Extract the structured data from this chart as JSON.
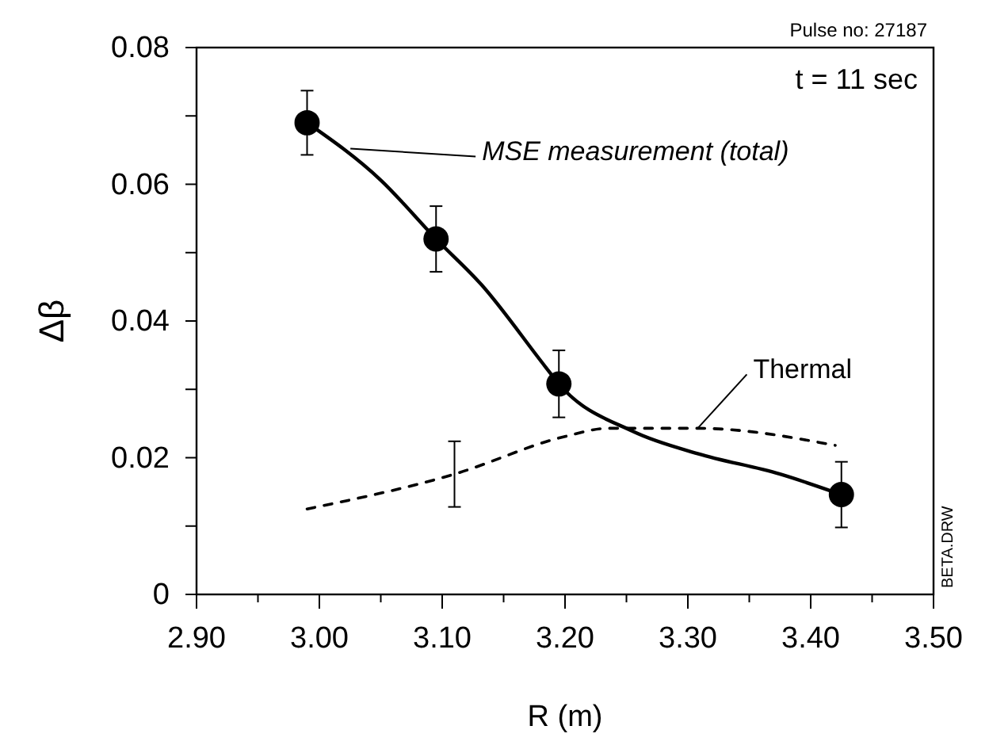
{
  "chart_data": {
    "type": "line",
    "xlabel": "R (m)",
    "ylabel": "Δβ",
    "xlim": [
      2.9,
      3.5
    ],
    "xticks": [
      {
        "value": 2.9,
        "label": "2.90"
      },
      {
        "value": 2.95,
        "label": null
      },
      {
        "value": 3.0,
        "label": "3.00"
      },
      {
        "value": 3.05,
        "label": null
      },
      {
        "value": 3.1,
        "label": "3.10"
      },
      {
        "value": 3.15,
        "label": null
      },
      {
        "value": 3.2,
        "label": "3.20"
      },
      {
        "value": 3.25,
        "label": null
      },
      {
        "value": 3.3,
        "label": "3.30"
      },
      {
        "value": 3.35,
        "label": null
      },
      {
        "value": 3.4,
        "label": "3.40"
      },
      {
        "value": 3.45,
        "label": null
      },
      {
        "value": 3.5,
        "label": "3.50"
      }
    ],
    "ylim": [
      0,
      0.08
    ],
    "yticks": [
      0,
      {
        "value": 0.01,
        "label": null
      },
      0.02,
      {
        "value": 0.03,
        "label": null
      },
      0.04,
      {
        "value": 0.05,
        "label": null
      },
      0.06,
      {
        "value": 0.07,
        "label": null
      },
      0.08
    ],
    "grid": false,
    "annotations": [
      "Pulse no: 27187",
      "t = 11 sec",
      "BETA.DRW"
    ],
    "series": [
      {
        "type": "scatter",
        "color": "#000000",
        "marker": "circle",
        "x": [
          2.99,
          3.095,
          3.195,
          3.425
        ],
        "values": [
          0.069,
          0.052,
          0.0308,
          0.0146
        ],
        "errors": [
          0.0047,
          0.0048,
          0.0049,
          0.0048
        ]
      },
      {
        "name": "MSE measurement (total)",
        "color": "#000000",
        "line_style": "solid",
        "x": [
          2.99,
          3.05,
          3.095,
          3.132,
          3.184,
          3.195,
          3.256,
          3.308,
          3.375,
          3.425
        ],
        "values": [
          0.069,
          0.0606,
          0.052,
          0.0453,
          0.0333,
          0.0308,
          0.0238,
          0.0206,
          0.0176,
          0.0146
        ]
      },
      {
        "name": "Thermal",
        "color": "#000000",
        "line_style": "dashed",
        "x": [
          2.99,
          3.11,
          3.2,
          3.235,
          3.308,
          3.42
        ],
        "values": [
          0.0125,
          0.0176,
          0.0231,
          0.0243,
          0.0243,
          0.0218
        ],
        "errors": [
          null,
          0.0048,
          null,
          null,
          null,
          null
        ]
      }
    ]
  }
}
